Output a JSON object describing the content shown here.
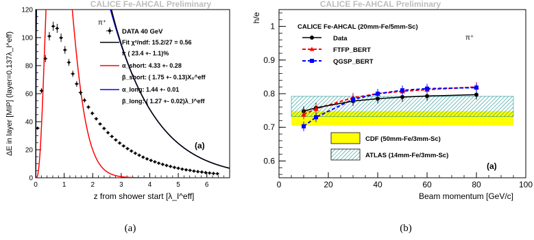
{
  "chart_data": [
    {
      "type": "line",
      "banner": "CALICE Fe-AHCAL Preliminary",
      "panel_tag": "(a)",
      "caption": "(a)",
      "particle": "π⁺",
      "xlabel": "z from shower start [λ_I^eff]",
      "ylabel": "ΔE in layer [MIP] (layer=0.137λ_I^eff)",
      "xlim": [
        0,
        6.8
      ],
      "ylim": [
        0,
        120
      ],
      "x_ticks": [
        0,
        1,
        2,
        3,
        4,
        5,
        6
      ],
      "y_ticks": [
        0,
        20,
        40,
        60,
        80,
        100,
        120
      ],
      "grid": false,
      "legend": {
        "position": "top-right",
        "data_label": "DATA  40 GeV",
        "fit_label": "Fit χ²/ndf:  15.2/27 =  0.56",
        "f_label": "f: ( 23.4 +-  1.1)%",
        "alpha_short_label": "α_short:  4.33 +- 0.28",
        "beta_short_label": "β_short: ( 1.75 +-  0.13)X₀^eff",
        "alpha_long_label": "α_long:  1.44 +- 0.01",
        "beta_long_label": "β_long: ( 1.27 +- 0.02)λ_I^eff"
      },
      "series": [
        {
          "name": "DATA  40 GeV",
          "color": "#000000",
          "style": "points",
          "x": [
            0.0685,
            0.2055,
            0.3425,
            0.4795,
            0.6165,
            0.7535,
            0.8905,
            1.0275,
            1.1645,
            1.3015,
            1.4385,
            1.5755,
            1.7125,
            1.8495,
            1.9865,
            2.1235,
            2.2605,
            2.3975,
            2.5345,
            2.6715,
            2.8085,
            2.9455,
            3.0825,
            3.2195,
            3.3565,
            3.4935,
            3.6305,
            3.7675,
            3.9045,
            4.0415,
            4.1785,
            4.3155,
            4.4525,
            4.5895,
            4.7265,
            4.8635,
            5.0005,
            5.1375,
            5.2745,
            5.4115,
            5.5485,
            5.6855,
            5.8225,
            5.9595,
            6.0965,
            6.2335,
            6.3705
          ],
          "y": [
            35.4,
            62.1,
            85.0,
            101.0,
            108.1,
            106.6,
            99.9,
            91.2,
            82.3,
            74.2,
            67.0,
            60.8,
            55.3,
            50.4,
            46.0,
            42.1,
            38.4,
            35.2,
            32.2,
            29.5,
            27.0,
            24.8,
            22.7,
            20.8,
            19.1,
            17.5,
            16.1,
            14.7,
            13.5,
            12.4,
            11.4,
            10.4,
            9.6,
            8.8,
            8.1,
            7.4,
            6.8,
            6.2,
            5.7,
            5.3,
            4.8,
            4.4,
            4.1,
            3.7,
            3.4,
            3.1,
            2.9
          ]
        },
        {
          "name": "Fit",
          "color": "#000000",
          "style": "line",
          "model": {
            "a_short": 4.33,
            "b_short": 0.2189,
            "a_long": 1.44,
            "b_long": 1.27,
            "f": 0.234,
            "norm": 1010
          }
        },
        {
          "name": "short",
          "color": "#ff0000",
          "style": "line"
        },
        {
          "name": "long",
          "color": "#0000ff",
          "style": "line"
        }
      ]
    },
    {
      "type": "line",
      "banner": "CALICE Fe-AHCAL Preliminary",
      "panel_tag": "(a)",
      "caption": "(b)",
      "particle": "π⁺",
      "title": "CALICE Fe-AHCAL (20mm-Fe/5mm-Sc)",
      "xlabel": "Beam momentum [GeV/c]",
      "ylabel": "h/e",
      "xlim": [
        0,
        100
      ],
      "ylim": [
        0.55,
        1.05
      ],
      "x_ticks": [
        0,
        20,
        40,
        60,
        80,
        100
      ],
      "y_ticks": [
        0.6,
        0.7,
        0.8,
        0.9,
        1.0
      ],
      "y_tick_labels": [
        "0.6",
        "0.7",
        "0.8",
        "0.9",
        "1"
      ],
      "grid": false,
      "legend": {
        "position": "top-left"
      },
      "series": [
        {
          "name": "Data",
          "color": "#000000",
          "style": "line+circles",
          "x": [
            10,
            15,
            30,
            40,
            50,
            60,
            80
          ],
          "y": [
            0.748,
            0.758,
            0.778,
            0.785,
            0.79,
            0.793,
            0.797
          ]
        },
        {
          "name": "FTFP_BERT",
          "color": "#ff0000",
          "style": "dashed+triangles",
          "x": [
            10,
            15,
            30,
            40,
            50,
            60,
            80
          ],
          "y": [
            0.738,
            0.755,
            0.788,
            0.8,
            0.807,
            0.812,
            0.82
          ]
        },
        {
          "name": "QGSP_BERT",
          "color": "#0000ff",
          "style": "dashed+squares",
          "x": [
            10,
            15,
            30,
            40,
            50,
            60,
            80
          ],
          "y": [
            0.703,
            0.73,
            0.783,
            0.8,
            0.81,
            0.815,
            0.818
          ]
        }
      ],
      "bands": [
        {
          "name": "CDF (50mm-Fe/3mm-Sc)",
          "color": "#ffff00",
          "xlim": [
            5,
            95
          ],
          "ylim": [
            0.705,
            0.748
          ]
        },
        {
          "name": "ATLAS (14mm-Fe/3mm-Sc)",
          "color": "#1a8f8f",
          "hatch": true,
          "xlim": [
            5,
            95
          ],
          "ylim": [
            0.732,
            0.792
          ]
        }
      ]
    }
  ]
}
